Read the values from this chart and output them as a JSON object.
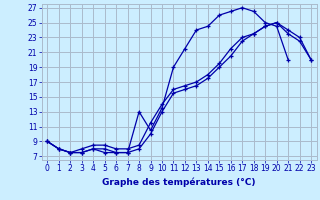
{
  "title": "Graphe des températures (°C)",
  "bg_color": "#cceeff",
  "grid_color": "#aabbcc",
  "line_color": "#0000aa",
  "xlim": [
    -0.5,
    23.5
  ],
  "ylim": [
    6.5,
    27.5
  ],
  "yticks": [
    7,
    9,
    11,
    13,
    15,
    17,
    19,
    21,
    23,
    25,
    27
  ],
  "xticks": [
    0,
    1,
    2,
    3,
    4,
    5,
    6,
    7,
    8,
    9,
    10,
    11,
    12,
    13,
    14,
    15,
    16,
    17,
    18,
    19,
    20,
    21,
    22,
    23
  ],
  "series1_x": [
    0,
    1,
    2,
    3,
    4,
    5,
    6,
    7,
    8,
    9,
    10,
    11,
    12,
    13,
    14,
    15,
    16,
    17,
    18,
    19,
    20,
    21
  ],
  "series1_y": [
    9.0,
    8.0,
    7.5,
    7.5,
    8.0,
    8.0,
    7.5,
    7.5,
    13.0,
    10.5,
    13.5,
    19.0,
    21.5,
    24.0,
    24.5,
    26.0,
    26.5,
    27.0,
    26.5,
    25.0,
    24.5,
    20.0
  ],
  "series2_x": [
    0,
    1,
    2,
    3,
    4,
    5,
    6,
    7,
    8,
    9,
    10,
    11,
    12,
    13,
    14,
    15,
    16,
    17,
    18,
    19,
    20,
    21,
    22,
    23
  ],
  "series2_y": [
    9.0,
    8.0,
    7.5,
    8.0,
    8.5,
    8.5,
    8.0,
    8.0,
    8.5,
    11.5,
    14.0,
    16.0,
    16.5,
    17.0,
    18.0,
    19.5,
    21.5,
    23.0,
    23.5,
    24.5,
    25.0,
    24.0,
    23.0,
    20.0
  ],
  "series3_x": [
    0,
    1,
    2,
    3,
    4,
    5,
    6,
    7,
    8,
    9,
    10,
    11,
    12,
    13,
    14,
    15,
    16,
    17,
    18,
    19,
    20,
    21,
    22,
    23
  ],
  "series3_y": [
    9.0,
    8.0,
    7.5,
    7.5,
    8.0,
    7.5,
    7.5,
    7.5,
    8.0,
    10.0,
    13.0,
    15.5,
    16.0,
    16.5,
    17.5,
    19.0,
    20.5,
    22.5,
    23.5,
    24.5,
    25.0,
    23.5,
    22.5,
    20.0
  ],
  "xlabel_fontsize": 6.5,
  "tick_fontsize": 5.5
}
